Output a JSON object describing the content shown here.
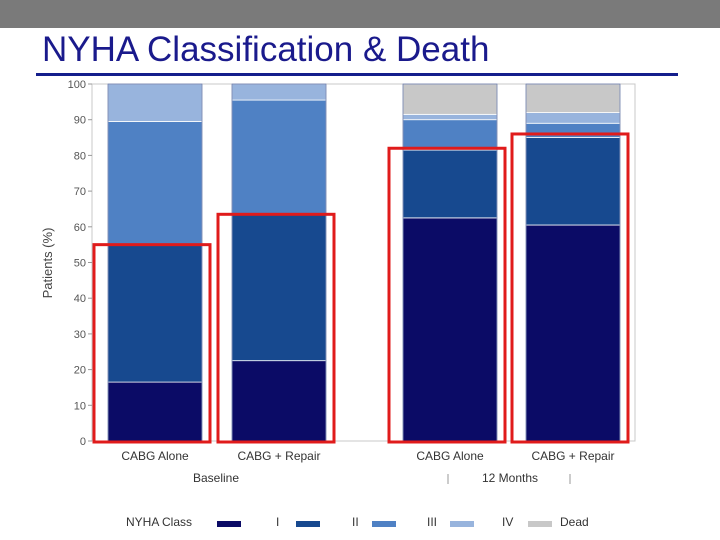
{
  "slide": {
    "title": "NYHA Classification & Death"
  },
  "chart_data": {
    "type": "bar",
    "stacked": true,
    "ylabel": "Patients (%)",
    "ylim": [
      0,
      100
    ],
    "yticks": [
      "0",
      "10",
      "20",
      "30",
      "40",
      "50",
      "60",
      "70",
      "80",
      "90",
      "100"
    ],
    "groups": [
      {
        "label": "Baseline",
        "categories": [
          "CABG Alone",
          "CABG + Repair"
        ]
      },
      {
        "label": "12 Months",
        "categories": [
          "CABG Alone",
          "CABG + Repair"
        ]
      }
    ],
    "categories": [
      "CABG Alone",
      "CABG + Repair",
      "CABG Alone",
      "CABG + Repair"
    ],
    "series": [
      {
        "name": "I",
        "color": "#0b0b66",
        "values": [
          16.5,
          22.5,
          62.5,
          60.5
        ]
      },
      {
        "name": "II",
        "color": "#17498f",
        "values": [
          38.5,
          41.0,
          19.0,
          24.5
        ]
      },
      {
        "name": "III",
        "color": "#4f81c4",
        "values": [
          34.5,
          32.0,
          8.5,
          4.0
        ]
      },
      {
        "name": "IV",
        "color": "#98b4dd",
        "values": [
          10.5,
          4.5,
          1.5,
          3.0
        ]
      },
      {
        "name": "Dead",
        "color": "#c8c8c8",
        "values": [
          0,
          0,
          8.5,
          8.0
        ]
      }
    ],
    "highlight": {
      "color": "#e01b1b",
      "tops": [
        55,
        63.5,
        82,
        86
      ]
    },
    "legend": {
      "title": "NYHA Class",
      "position": "bottom"
    }
  }
}
